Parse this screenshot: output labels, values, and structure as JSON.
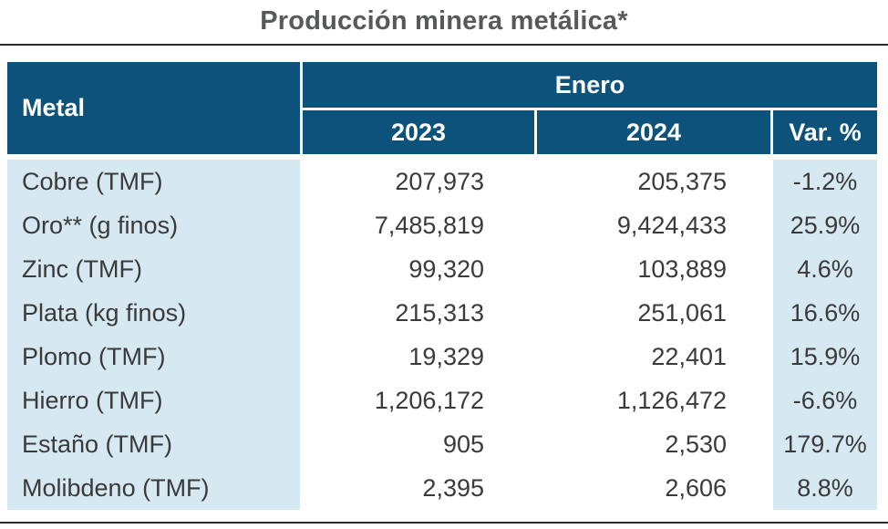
{
  "title": "Producción minera metálica*",
  "table": {
    "metal_header": "Metal",
    "group_header": "Enero",
    "col_headers": {
      "y2023": "2023",
      "y2024": "2024",
      "var": "Var. %"
    },
    "rows": [
      {
        "metal": "Cobre (TMF)",
        "y2023": "207,973",
        "y2024": "205,375",
        "var": "-1.2%"
      },
      {
        "metal": "Oro** (g finos)",
        "y2023": "7,485,819",
        "y2024": "9,424,433",
        "var": "25.9%"
      },
      {
        "metal": "Zinc (TMF)",
        "y2023": "99,320",
        "y2024": "103,889",
        "var": "4.6%"
      },
      {
        "metal": "Plata (kg finos)",
        "y2023": "215,313",
        "y2024": "251,061",
        "var": "16.6%"
      },
      {
        "metal": "Plomo (TMF)",
        "y2023": "19,329",
        "y2024": "22,401",
        "var": "15.9%"
      },
      {
        "metal": "Hierro (TMF)",
        "y2023": "1,206,172",
        "y2024": "1,126,472",
        "var": "-6.6%"
      },
      {
        "metal": "Estaño (TMF)",
        "y2023": "905",
        "y2024": "2,530",
        "var": "179.7%"
      },
      {
        "metal": "Molibdeno (TMF)",
        "y2023": "2,395",
        "y2024": "2,606",
        "var": "8.8%"
      }
    ]
  },
  "chart_data": {
    "type": "table",
    "title": "Producción minera metálica*",
    "group_header": "Enero",
    "columns": [
      "Metal",
      "2023",
      "2024",
      "Var. %"
    ],
    "rows": [
      [
        "Cobre (TMF)",
        207973,
        205375,
        "-1.2%"
      ],
      [
        "Oro** (g finos)",
        7485819,
        9424433,
        "25.9%"
      ],
      [
        "Zinc (TMF)",
        99320,
        103889,
        "4.6%"
      ],
      [
        "Plata (kg finos)",
        215313,
        251061,
        "16.6%"
      ],
      [
        "Plomo (TMF)",
        19329,
        22401,
        "15.9%"
      ],
      [
        "Hierro (TMF)",
        1206172,
        1126472,
        "-6.6%"
      ],
      [
        "Estaño (TMF)",
        905,
        2530,
        "179.7%"
      ],
      [
        "Molibdeno (TMF)",
        2395,
        2606,
        "8.8%"
      ]
    ]
  },
  "colors": {
    "header_blue": "#0C527B",
    "light_blue": "#D6E8F1",
    "title_gray": "#58595B",
    "body_text": "#3A3A3A",
    "rule_dark": "#2B2B2B"
  }
}
